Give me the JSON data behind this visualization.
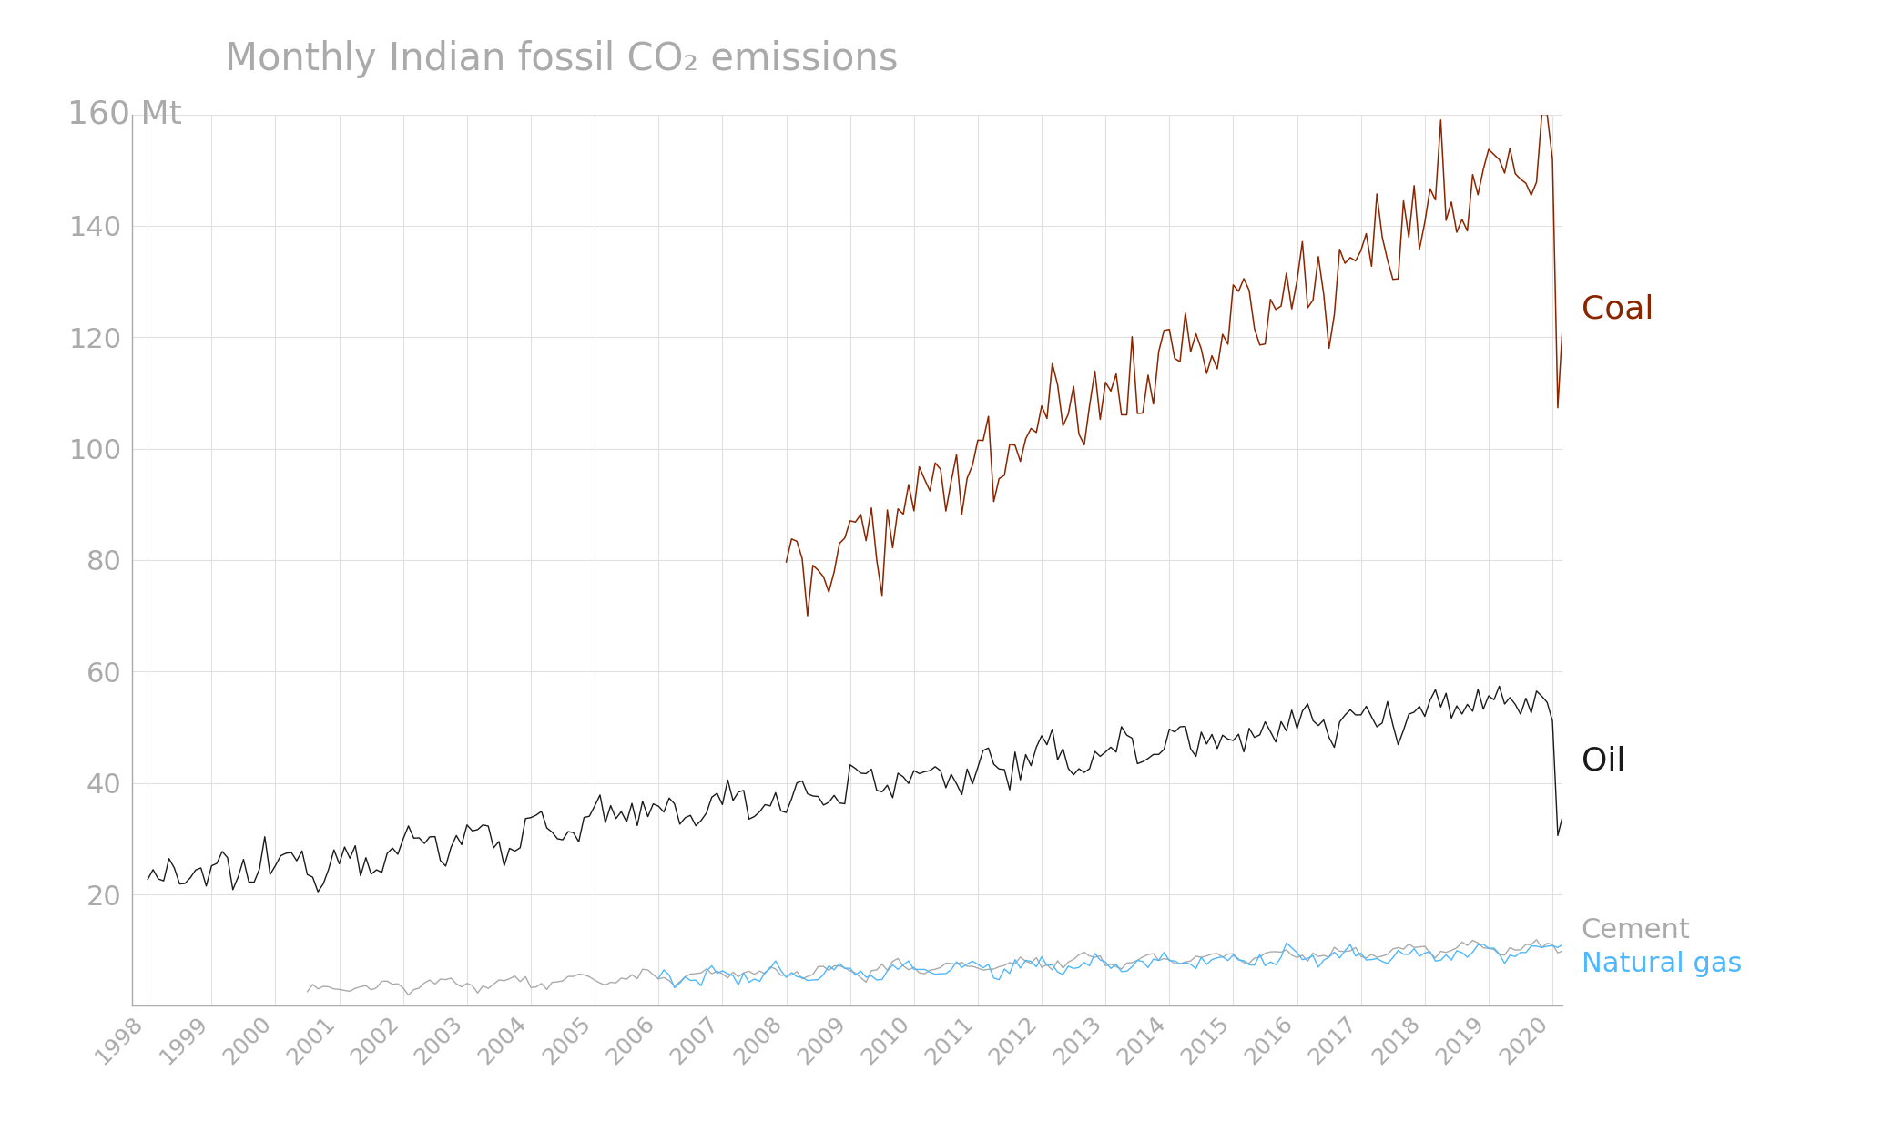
{
  "title": "Monthly Indian fossil CO₂ emissions",
  "ylabel": "160 Mt",
  "background_color": "#ffffff",
  "grid_color": "#e0e0e0",
  "axis_color": "#aaaaaa",
  "tick_label_color": "#aaaaaa",
  "title_color": "#aaaaaa",
  "coal_color": "#8B2500",
  "oil_color": "#1a1a1a",
  "cement_color": "#aaaaaa",
  "gas_color": "#4db8ff",
  "coal_label": "Coal",
  "oil_label": "Oil",
  "cement_label": "Cement",
  "gas_label": "Natural gas",
  "ylim": [
    0,
    160
  ],
  "yticks": [
    0,
    20,
    40,
    60,
    80,
    100,
    120,
    140,
    160
  ],
  "start_year": 1998,
  "end_year": 2020
}
